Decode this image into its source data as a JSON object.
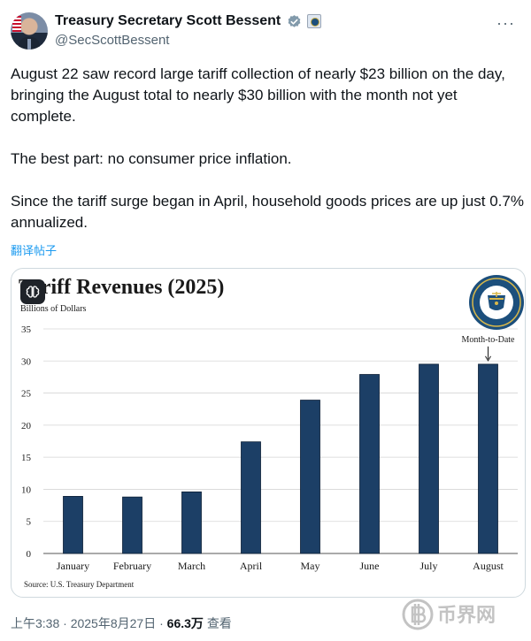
{
  "author": {
    "display_name": "Treasury Secretary Scott Bessent",
    "handle": "@SecScottBessent"
  },
  "icons": {
    "verified": "verified-badge-icon",
    "government": "government-badge-icon",
    "more": "more-options-icon"
  },
  "tweet": {
    "paragraphs": [
      "August 22 saw record large tariff collection of nearly $23 billion on the day, bringing the August total to nearly $30 billion with the month not yet complete.",
      "The best part: no consumer price inflation.",
      "Since the tariff surge began in April, household goods prices are up just 0.7% annualized."
    ],
    "translate_label": "翻译帖子"
  },
  "meta": {
    "time": "上午3:38",
    "date": "2025年8月27日",
    "views": "66.3万",
    "views_label": "查看"
  },
  "watermark": "币界网",
  "chart_data": {
    "type": "bar",
    "title": "Tariff Revenues (2025)",
    "ylabel": "Billions of Dollars",
    "source": "Source: U.S. Treasury Department",
    "annotation": "Month-to-Date",
    "annotation_target": "August",
    "categories": [
      "January",
      "February",
      "March",
      "April",
      "May",
      "June",
      "July",
      "August"
    ],
    "values": [
      8.9,
      8.8,
      9.6,
      17.4,
      23.9,
      27.9,
      29.5,
      29.5
    ],
    "ylim": [
      0,
      35
    ],
    "yticks": [
      0,
      5,
      10,
      15,
      20,
      25,
      30,
      35
    ],
    "grid": true,
    "bar_color": "#1c3f66"
  }
}
